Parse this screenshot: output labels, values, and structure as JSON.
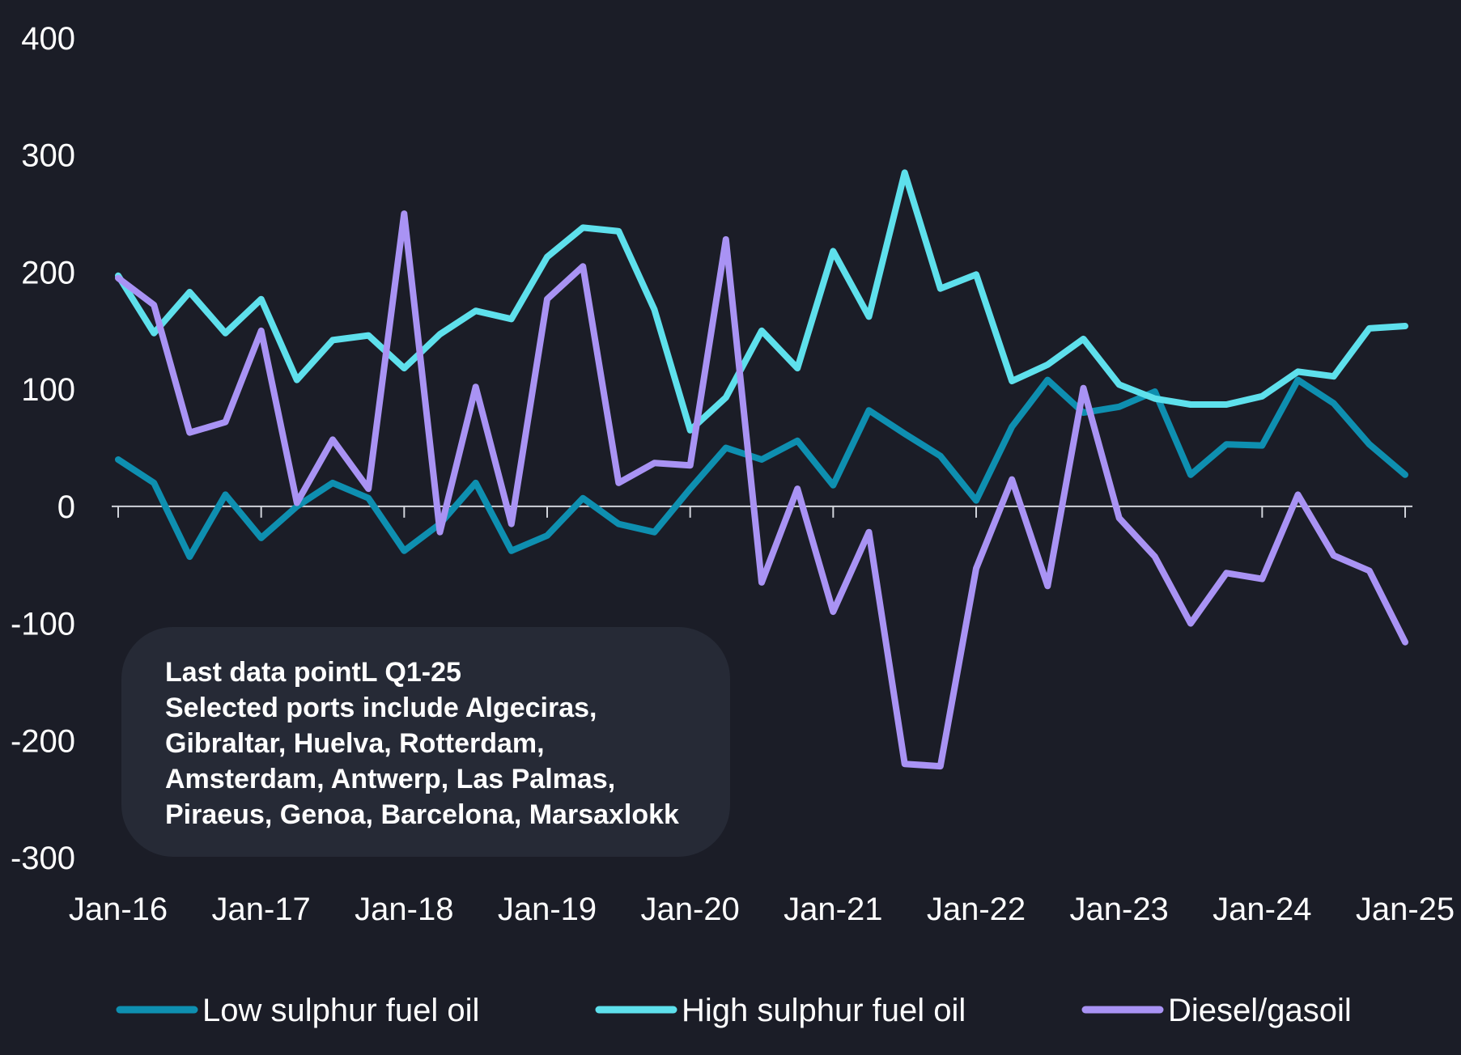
{
  "chart_data": {
    "type": "line",
    "x_ticks": [
      "Jan-16",
      "Jan-17",
      "Jan-18",
      "Jan-19",
      "Jan-20",
      "Jan-21",
      "Jan-22",
      "Jan-23",
      "Jan-24",
      "Jan-25"
    ],
    "y_ticks": [
      400,
      300,
      200,
      100,
      0,
      -100,
      -200,
      -300
    ],
    "ylim": [
      -300,
      400
    ],
    "x": [
      "Q1-16",
      "Q2-16",
      "Q3-16",
      "Q4-16",
      "Q1-17",
      "Q2-17",
      "Q3-17",
      "Q4-17",
      "Q1-18",
      "Q2-18",
      "Q3-18",
      "Q4-18",
      "Q1-19",
      "Q2-19",
      "Q3-19",
      "Q4-19",
      "Q1-20",
      "Q2-20",
      "Q3-20",
      "Q4-20",
      "Q1-21",
      "Q2-21",
      "Q3-21",
      "Q4-21",
      "Q1-22",
      "Q2-22",
      "Q3-22",
      "Q4-22",
      "Q1-23",
      "Q2-23",
      "Q3-23",
      "Q4-23",
      "Q1-24",
      "Q2-24",
      "Q3-24",
      "Q4-24",
      "Q1-25"
    ],
    "series": [
      {
        "name": "Low sulphur fuel oil",
        "color": "#0e8fb0",
        "values": [
          40,
          20,
          -43,
          10,
          -27,
          0,
          20,
          7,
          -38,
          -15,
          20,
          -38,
          -25,
          7,
          -15,
          -22,
          15,
          50,
          40,
          56,
          18,
          82,
          62,
          43,
          5,
          68,
          108,
          80,
          85,
          98,
          27,
          53,
          52,
          108,
          88,
          53,
          27
        ]
      },
      {
        "name": "High sulphur fuel oil",
        "color": "#5ee0ec",
        "values": [
          197,
          148,
          183,
          148,
          177,
          108,
          142,
          146,
          118,
          147,
          167,
          160,
          213,
          238,
          235,
          168,
          65,
          93,
          150,
          118,
          218,
          162,
          285,
          186,
          198,
          107,
          121,
          143,
          104,
          92,
          87,
          87,
          94,
          115,
          111,
          152,
          154
        ]
      },
      {
        "name": "Diesel/gasoil",
        "color": "#a993f4",
        "values": [
          195,
          172,
          63,
          72,
          150,
          3,
          57,
          15,
          250,
          -22,
          102,
          -15,
          177,
          205,
          20,
          37,
          35,
          228,
          -65,
          15,
          -90,
          -22,
          -220,
          -222,
          -53,
          23,
          -68,
          101,
          -10,
          -43,
          -100,
          -57,
          -62,
          10,
          -42,
          -55,
          -116
        ]
      }
    ],
    "annotation": [
      "Last data pointL Q1-25",
      "Selected ports include Algeciras,",
      "Gibraltar, Huelva, Rotterdam,",
      "Amsterdam, Antwerp, Las Palmas,",
      "Piraeus, Genoa, Barcelona, Marsaxlokk"
    ],
    "legend": {
      "position": "bottom"
    },
    "grid": false
  }
}
